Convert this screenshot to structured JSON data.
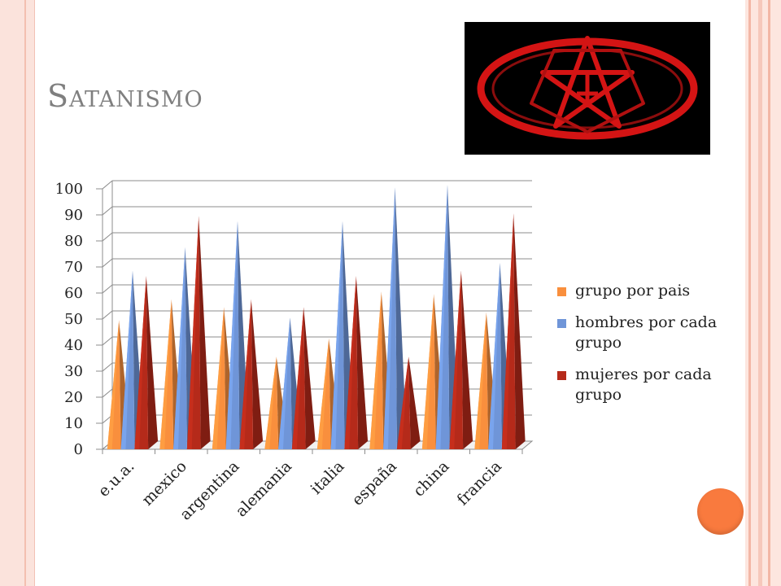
{
  "slide": {
    "title": "Satanismo"
  },
  "chart_data": {
    "type": "bar",
    "title": "",
    "xlabel": "",
    "ylabel": "",
    "ylim": [
      0,
      100
    ],
    "yticks": [
      0,
      10,
      20,
      30,
      40,
      50,
      60,
      70,
      80,
      90,
      100
    ],
    "categories": [
      "e.u.a.",
      "mexico",
      "argentina",
      "alemania",
      "italia",
      "españa",
      "china",
      "francia"
    ],
    "series": [
      {
        "name": "grupo por pais",
        "color": "#f98f3d",
        "values": [
          48,
          56,
          53,
          34,
          41,
          59,
          58,
          51
        ]
      },
      {
        "name": "hombres por cada grupo",
        "color": "#6f95d8",
        "values": [
          67,
          76,
          86,
          49,
          86,
          99,
          100,
          70
        ]
      },
      {
        "name": "mujeres por cada grupo",
        "color": "#b52a1a",
        "values": [
          65,
          88,
          56,
          53,
          65,
          34,
          67,
          89
        ]
      }
    ],
    "legend_position": "right",
    "grid": true
  }
}
